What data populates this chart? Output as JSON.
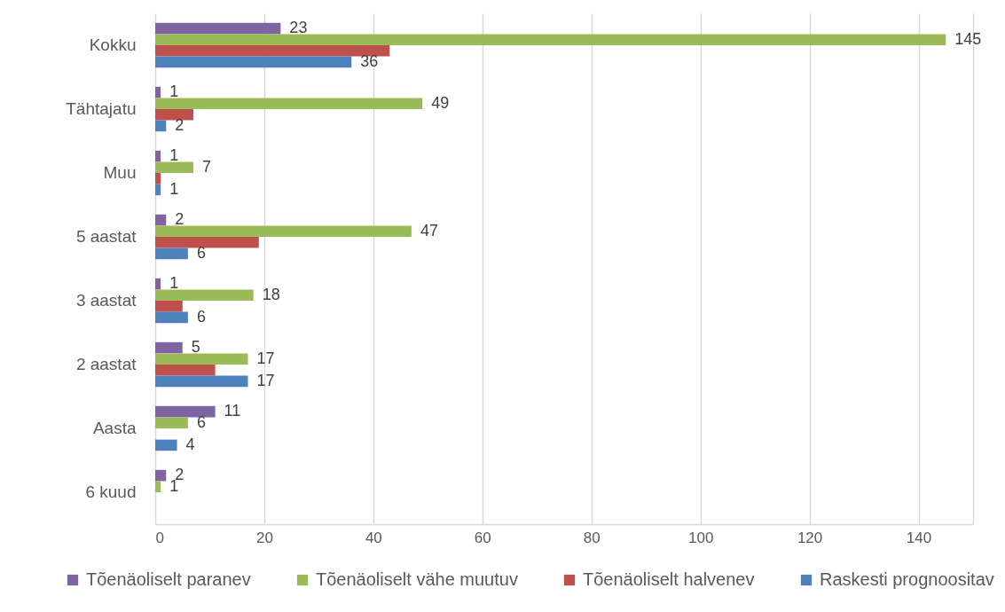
{
  "chart_data": {
    "type": "bar",
    "orientation": "horizontal",
    "categories": [
      "Kokku",
      "Tähtajatu",
      "Muu",
      "5 aastat",
      "3 aastat",
      "2 aastat",
      "Aasta",
      "6 kuud"
    ],
    "series": [
      {
        "name": "Tõenäoliselt paranev",
        "color": "#8064a2",
        "values": [
          23,
          1,
          1,
          2,
          1,
          5,
          11,
          2
        ],
        "value_labels": [
          "23",
          "1",
          "1",
          "2",
          "1",
          "5",
          "11",
          "2"
        ]
      },
      {
        "name": "Tõenäoliselt vähe muutuv",
        "color": "#9bbb59",
        "values": [
          145,
          49,
          7,
          47,
          18,
          17,
          6,
          1
        ],
        "value_labels": [
          "145",
          "49",
          "7",
          "47",
          "18",
          "17",
          "6",
          "1"
        ]
      },
      {
        "name": "Tõenäoliselt halvenev",
        "color": "#c0504d",
        "values": [
          43,
          7,
          1,
          19,
          5,
          11,
          null,
          null
        ]
      },
      {
        "name": "Raskesti prognoositav",
        "color": "#4f81bd",
        "values": [
          36,
          2,
          1,
          6,
          6,
          17,
          4,
          null
        ],
        "value_labels": [
          "36",
          "2",
          "1",
          "6",
          "6",
          "17",
          "4",
          null
        ]
      }
    ],
    "xlim": [
      0,
      150
    ],
    "xticks": [
      0,
      20,
      40,
      60,
      80,
      100,
      120,
      140,
      {
        "value": 150,
        "label": null
      }
    ],
    "grid": "x",
    "legend": "bottom"
  }
}
